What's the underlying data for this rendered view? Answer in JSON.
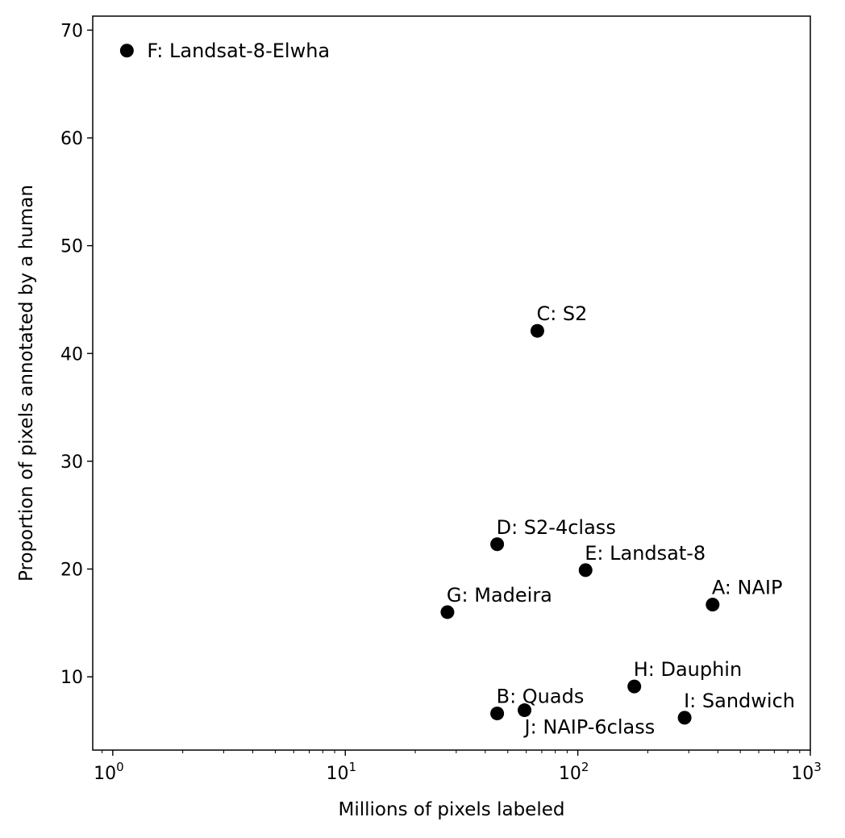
{
  "chart_data": {
    "type": "scatter",
    "title": "",
    "xlabel": "Millions of pixels labeled",
    "ylabel": "Proportion of pixels annotated by a human",
    "xscale": "log",
    "xlim": [
      0.82,
      1000
    ],
    "ylim": [
      3.2,
      71.3
    ],
    "x_ticks": [
      {
        "value": 1,
        "base": "10",
        "exp": "0"
      },
      {
        "value": 10,
        "base": "10",
        "exp": "1"
      },
      {
        "value": 100,
        "base": "10",
        "exp": "2"
      },
      {
        "value": 1000,
        "base": "10",
        "exp": "3"
      }
    ],
    "y_ticks": [
      10,
      20,
      30,
      40,
      50,
      60,
      70
    ],
    "grid": false,
    "marker_color": "#000000",
    "points": [
      {
        "label": "F: Landsat-8-Elwha",
        "x": 1.15,
        "y": 68.1
      },
      {
        "label": "C: S2",
        "x": 67,
        "y": 42.1
      },
      {
        "label": "D: S2-4class",
        "x": 45,
        "y": 22.3
      },
      {
        "label": "E: Landsat-8",
        "x": 108,
        "y": 19.9
      },
      {
        "label": "A: NAIP",
        "x": 380,
        "y": 16.7
      },
      {
        "label": "G: Madeira",
        "x": 27.5,
        "y": 16.0
      },
      {
        "label": "H: Dauphin",
        "x": 175,
        "y": 9.1
      },
      {
        "label": "B: Quads",
        "x": 45,
        "y": 6.6
      },
      {
        "label": "J: NAIP-6class",
        "x": 59,
        "y": 6.9
      },
      {
        "label": "I: Sandwich",
        "x": 288,
        "y": 6.2
      }
    ]
  }
}
